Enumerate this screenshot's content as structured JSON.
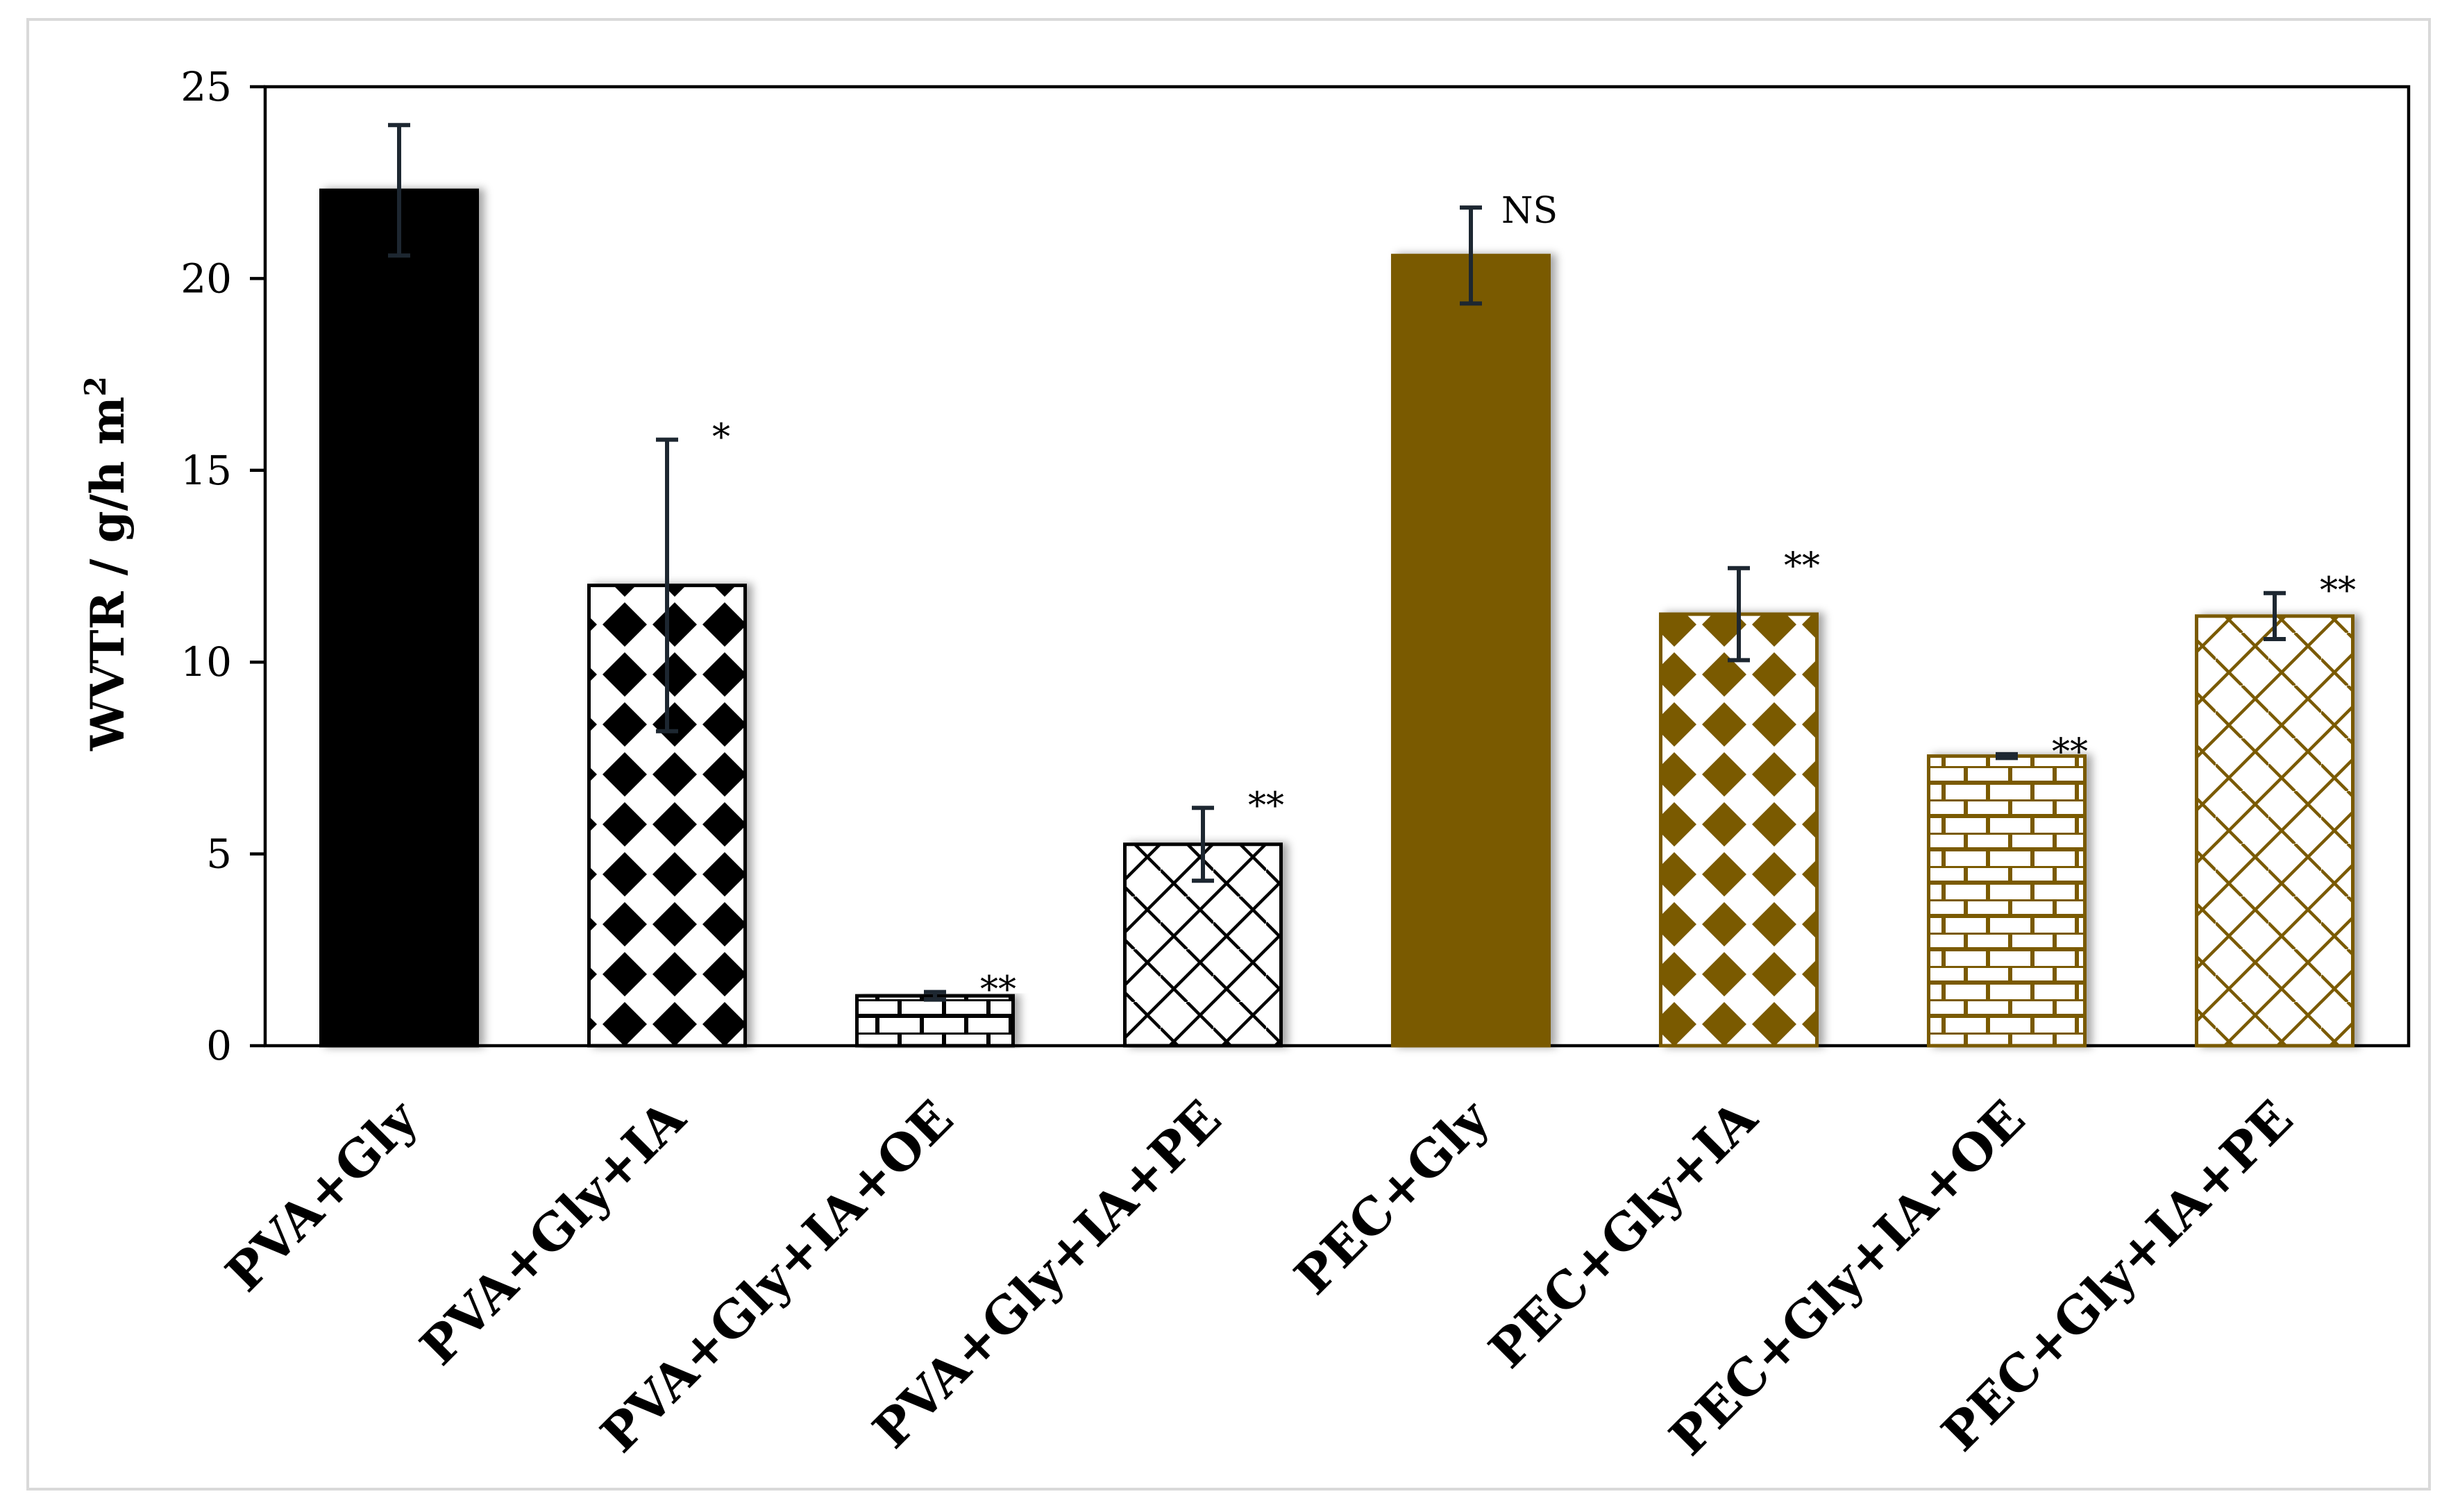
{
  "chart_data": {
    "type": "bar",
    "title": "",
    "xlabel": "",
    "ylabel": "WVTR / g/h m",
    "ylabel_superscript": "2",
    "ylim": [
      0,
      25
    ],
    "yticks": [
      "0",
      "5",
      "10",
      "15",
      "20",
      "25"
    ],
    "categories": [
      "PVA+Gly",
      "PVA+Gly+IA",
      "PVA+Gly+IA+OE",
      "PVA+Gly+IA+PE",
      "PEC+Gly",
      "PEC+Gly+IA",
      "PEC+Gly+IA+OE",
      "PEC+Gly+IA+PE"
    ],
    "values": [
      22.3,
      12.0,
      1.3,
      5.25,
      20.6,
      11.25,
      7.55,
      11.2
    ],
    "errors": [
      1.7,
      3.8,
      0.1,
      0.95,
      1.25,
      1.2,
      0.05,
      0.6
    ],
    "significance": [
      "",
      "*",
      "**",
      "**",
      "NS",
      "**",
      "**",
      "**"
    ],
    "fill_patterns": [
      "solid",
      "diamond",
      "brick",
      "diagonal-lattice",
      "solid",
      "diamond",
      "brick",
      "diagonal-lattice"
    ],
    "series_colors": [
      "#000000",
      "#000000",
      "#000000",
      "#000000",
      "#7a5a06",
      "#7a5a06",
      "#7a5a06",
      "#7a5a06"
    ],
    "grid": false,
    "legend": "none"
  }
}
